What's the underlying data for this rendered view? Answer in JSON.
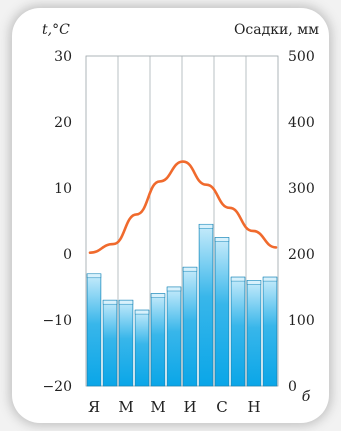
{
  "chart_data": {
    "type": "bar+line",
    "left_axis": {
      "label": "t,°C",
      "ylim": [
        -20,
        30
      ],
      "ticks": [
        30,
        20,
        10,
        0,
        -10,
        -20
      ]
    },
    "right_axis": {
      "label": "Осадки, мм",
      "ylim": [
        0,
        500
      ],
      "ticks": [
        500,
        400,
        300,
        200,
        100,
        0
      ]
    },
    "month_tick_labels": [
      "Я",
      "М",
      "М",
      "И",
      "С",
      "Н"
    ],
    "panel_label": "б",
    "series": [
      {
        "type": "bar",
        "axis": "right",
        "values": [
          170,
          130,
          130,
          115,
          140,
          150,
          180,
          245,
          225,
          165,
          160,
          165
        ],
        "color": "#29abe2"
      },
      {
        "type": "line",
        "axis": "left",
        "values": [
          0.2,
          1.5,
          6.0,
          11.0,
          14.0,
          10.5,
          7.0,
          3.5,
          1.0
        ],
        "color": "#f06a2d"
      }
    ],
    "grid": {
      "vertical": true,
      "horizontal": false
    }
  }
}
